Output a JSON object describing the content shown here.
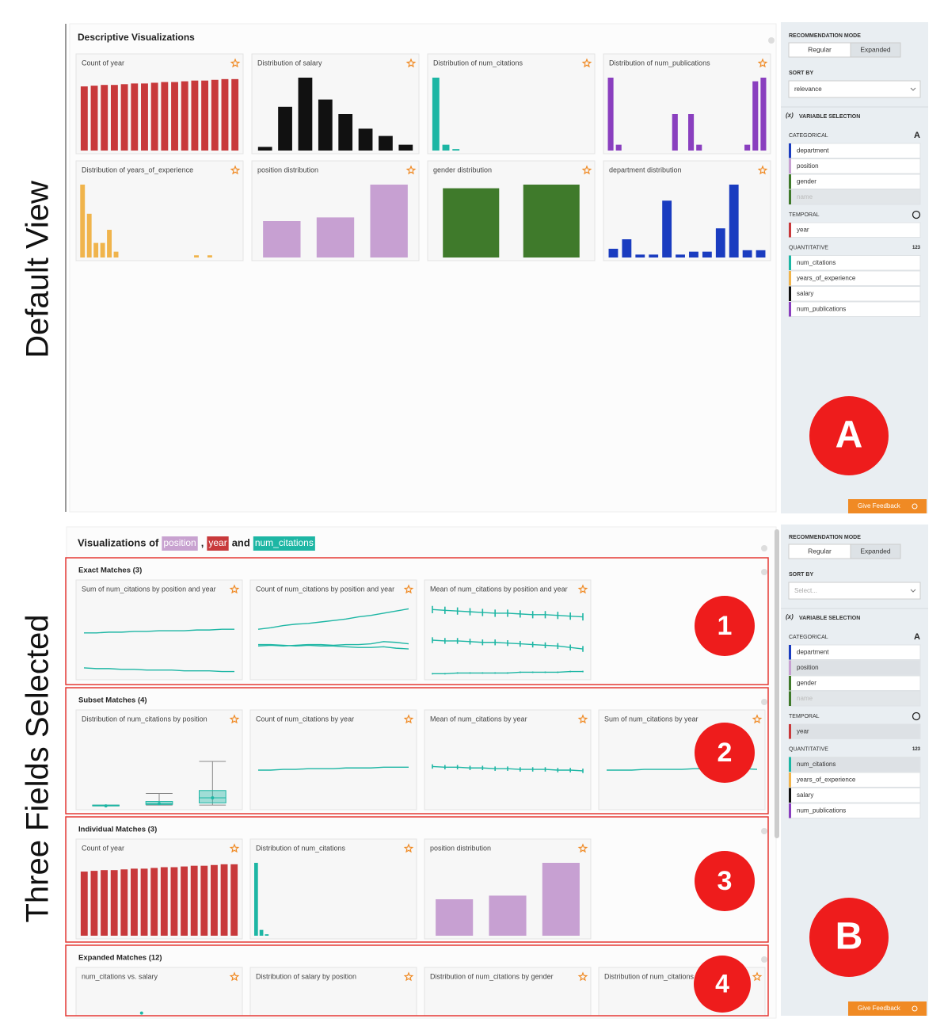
{
  "labels": {
    "default_view": "Default View",
    "three_fields": "Three Fields Selected"
  },
  "thumb_ylim": [
    0,
    100
  ],
  "panel_a": {
    "title": "Descriptive Visualizations",
    "cards": [
      {
        "title": "Count of year",
        "kind": "bar",
        "color": "#c8393b",
        "values": [
          88,
          89,
          90,
          90,
          91,
          92,
          92,
          93,
          94,
          94,
          95,
          96,
          96,
          97,
          98,
          98
        ]
      },
      {
        "title": "Distribution of salary",
        "kind": "bar",
        "color": "#111111",
        "values": [
          5,
          60,
          100,
          70,
          50,
          30,
          20,
          8
        ]
      },
      {
        "title": "Distribution of num_citations",
        "kind": "bar",
        "color": "#1db6a4",
        "values": [
          100,
          8,
          2,
          0,
          0,
          0,
          0,
          0,
          0,
          0,
          0,
          0,
          0,
          0,
          0,
          0
        ]
      },
      {
        "title": "Distribution of num_publications",
        "kind": "bar",
        "color": "#8a3fbf",
        "values": [
          100,
          8,
          0,
          0,
          0,
          0,
          0,
          0,
          50,
          0,
          50,
          8,
          0,
          0,
          0,
          0,
          0,
          8,
          95,
          100
        ]
      },
      {
        "title": "Distribution of years_of_experience",
        "kind": "bar",
        "color": "#f0b44c",
        "values": [
          100,
          60,
          20,
          20,
          38,
          8,
          0,
          0,
          0,
          0,
          0,
          0,
          0,
          0,
          0,
          0,
          0,
          3,
          0,
          3,
          0,
          0,
          0,
          0
        ]
      },
      {
        "title": "position distribution",
        "kind": "bar",
        "color": "#c7a0d2",
        "values": [
          50,
          55,
          100
        ]
      },
      {
        "title": "gender distribution",
        "kind": "bar",
        "color": "#3f7a2b",
        "values": [
          95,
          100
        ]
      },
      {
        "title": "department distribution",
        "kind": "bar",
        "color": "#1a3cc0",
        "values": [
          12,
          25,
          4,
          4,
          78,
          4,
          8,
          8,
          40,
          100,
          10,
          10
        ]
      }
    ]
  },
  "sidebar_a": {
    "mode_label": "RECOMMENDATION MODE",
    "modes": [
      "Regular",
      "Expanded"
    ],
    "active_mode": 1,
    "sort_label": "SORT BY",
    "sort_value": "relevance",
    "sort_placeholder": false,
    "var_icon": "(x)",
    "var_label": "VARIABLE SELECTION",
    "groups": [
      {
        "label": "CATEGORICAL",
        "icon": "A",
        "fields": [
          {
            "name": "department",
            "color": "#1a3cc0"
          },
          {
            "name": "position",
            "color": "#c7a0d2"
          },
          {
            "name": "gender",
            "color": "#3f7a2b"
          },
          {
            "name": "name",
            "color": "#3f7a2b",
            "disabled": true
          }
        ]
      },
      {
        "label": "TEMPORAL",
        "icon": "",
        "fields": [
          {
            "name": "year",
            "color": "#c8393b"
          }
        ]
      },
      {
        "label": "QUANTITATIVE",
        "icon": "123",
        "fields": [
          {
            "name": "num_citations",
            "color": "#1db6a4"
          },
          {
            "name": "years_of_experience",
            "color": "#f0b44c"
          },
          {
            "name": "salary",
            "color": "#111111"
          },
          {
            "name": "num_publications",
            "color": "#8a3fbf"
          }
        ]
      }
    ],
    "feedback": "Give Feedback"
  },
  "panel_b": {
    "title": [
      {
        "text": "Visualizations of"
      },
      {
        "text": "position",
        "highlight": "#c8a2d0"
      },
      {
        "text": ","
      },
      {
        "text": "year",
        "highlight": "#c8393b"
      },
      {
        "text": "and"
      },
      {
        "text": "num_citations",
        "highlight": "#1db6a4"
      }
    ],
    "sections": [
      {
        "title": "Exact Matches (3)",
        "cards": [
          {
            "title": "Sum of num_citations by position and year",
            "kind": "line",
            "color": "#1db6a4",
            "series": [
              {
                "values": [
                  60,
                  60,
                  61,
                  61,
                  62,
                  62,
                  63,
                  63,
                  63,
                  64,
                  64,
                  65,
                  65
                ]
              },
              {
                "values": [
                  12,
                  11,
                  11,
                  10,
                  10,
                  9,
                  9,
                  9,
                  8,
                  8,
                  8,
                  7,
                  7
                ]
              }
            ]
          },
          {
            "title": "Count of num_citations by position and year",
            "kind": "line",
            "color": "#1db6a4",
            "series": [
              {
                "values": [
                  65,
                  67,
                  70,
                  72,
                  73,
                  75,
                  77,
                  79,
                  82,
                  84,
                  87,
                  90,
                  93
                ]
              },
              {
                "values": [
                  42,
                  43,
                  42,
                  43,
                  44,
                  44,
                  43,
                  44,
                  44,
                  45,
                  48,
                  47,
                  45
                ]
              },
              {
                "values": [
                  44,
                  44,
                  43,
                  42,
                  43,
                  42,
                  42,
                  41,
                  40,
                  40,
                  41,
                  39,
                  38
                ]
              }
            ]
          },
          {
            "title": "Mean of num_citations by position and year",
            "kind": "line",
            "color": "#1db6a4",
            "series": [
              {
                "values": [
                  92,
                  91,
                  90,
                  89,
                  88,
                  87,
                  87,
                  86,
                  85,
                  85,
                  84,
                  83,
                  82
                ],
                "errors": [
                  5,
                  5,
                  5,
                  5,
                  5,
                  5,
                  5,
                  5,
                  5,
                  5,
                  5,
                  5,
                  5
                ]
              },
              {
                "values": [
                  50,
                  49,
                  49,
                  48,
                  47,
                  47,
                  46,
                  45,
                  44,
                  43,
                  42,
                  40,
                  38
                ],
                "errors": [
                  4,
                  4,
                  4,
                  4,
                  4,
                  4,
                  4,
                  4,
                  4,
                  4,
                  4,
                  4,
                  4
                ]
              },
              {
                "values": [
                  4,
                  4,
                  5,
                  5,
                  5,
                  5,
                  5,
                  6,
                  6,
                  6,
                  6,
                  7,
                  7
                ],
                "errors": [
                  1,
                  1,
                  1,
                  1,
                  1,
                  1,
                  1,
                  1,
                  1,
                  1,
                  1,
                  1,
                  1
                ]
              }
            ]
          }
        ]
      },
      {
        "title": "Subset Matches (4)",
        "cards": [
          {
            "title": "Distribution of num_citations by position",
            "kind": "box",
            "color": "#1db6a4",
            "boxes": [
              {
                "min": 1,
                "q1": 1,
                "median": 1,
                "q3": 2,
                "max": 2
              },
              {
                "min": 2,
                "q1": 3,
                "median": 4,
                "q3": 7,
                "max": 18
              },
              {
                "min": 2,
                "q1": 5,
                "median": 12,
                "q3": 22,
                "max": 62
              }
            ]
          },
          {
            "title": "Count of num_citations by year",
            "kind": "line",
            "color": "#1db6a4",
            "series": [
              {
                "values": [
                  50,
                  50,
                  51,
                  51,
                  52,
                  52,
                  52,
                  53,
                  53,
                  53,
                  54,
                  54,
                  54
                ]
              }
            ]
          },
          {
            "title": "Mean of num_citations by year",
            "kind": "line",
            "color": "#1db6a4",
            "series": [
              {
                "values": [
                  55,
                  54,
                  54,
                  53,
                  53,
                  52,
                  52,
                  51,
                  51,
                  51,
                  50,
                  50,
                  49
                ],
                "errors": [
                  3,
                  3,
                  3,
                  3,
                  3,
                  3,
                  3,
                  3,
                  3,
                  3,
                  3,
                  3,
                  3
                ]
              }
            ]
          },
          {
            "title": "Sum of num_citations by year",
            "kind": "line",
            "color": "#1db6a4",
            "series": [
              {
                "values": [
                  50,
                  50,
                  50,
                  51,
                  51,
                  51,
                  51,
                  52,
                  52,
                  52,
                  52,
                  52,
                  51
                ]
              }
            ]
          }
        ]
      },
      {
        "title": "Individual Matches (3)",
        "cards": [
          {
            "title": "Count of year",
            "kind": "bar",
            "color": "#c8393b",
            "values": [
              88,
              89,
              90,
              90,
              91,
              92,
              92,
              93,
              94,
              94,
              95,
              96,
              96,
              97,
              98,
              98
            ]
          },
          {
            "title": "Distribution of num_citations",
            "kind": "bar",
            "color": "#1db6a4",
            "values": [
              100,
              8,
              2,
              0,
              0,
              0,
              0,
              0,
              0,
              0,
              0,
              0,
              0,
              0,
              0,
              0,
              0,
              0,
              0,
              0,
              0,
              0,
              0,
              0,
              0,
              0,
              0,
              0,
              0,
              0
            ]
          },
          {
            "title": "position distribution",
            "kind": "bar",
            "color": "#c7a0d2",
            "values": [
              50,
              55,
              100
            ]
          }
        ]
      },
      {
        "title": "Expanded Matches (12)",
        "cards": [
          {
            "title": "num_citations vs. salary",
            "kind": "scatter",
            "color": "#1db6a4",
            "xlim": [
              0,
              100
            ],
            "x": [
              39
            ],
            "y": [
              70
            ]
          },
          {
            "title": "Distribution of salary by position",
            "kind": "none"
          },
          {
            "title": "Distribution of num_citations by gender",
            "kind": "none"
          },
          {
            "title": "Distribution of num_citations",
            "kind": "none"
          }
        ]
      }
    ]
  },
  "sidebar_b": {
    "mode_label": "RECOMMENDATION MODE",
    "modes": [
      "Regular",
      "Expanded"
    ],
    "active_mode": 1,
    "sort_label": "SORT BY",
    "sort_value": "Select...",
    "sort_placeholder": true,
    "var_icon": "(x)",
    "var_label": "VARIABLE SELECTION",
    "groups": [
      {
        "label": "CATEGORICAL",
        "icon": "A",
        "fields": [
          {
            "name": "department",
            "color": "#1a3cc0"
          },
          {
            "name": "position",
            "color": "#c7a0d2",
            "selected": true
          },
          {
            "name": "gender",
            "color": "#3f7a2b"
          },
          {
            "name": "name",
            "color": "#3f7a2b",
            "disabled": true
          }
        ]
      },
      {
        "label": "TEMPORAL",
        "icon": "",
        "fields": [
          {
            "name": "year",
            "color": "#c8393b",
            "selected": true
          }
        ]
      },
      {
        "label": "QUANTITATIVE",
        "icon": "123",
        "fields": [
          {
            "name": "num_citations",
            "color": "#1db6a4",
            "selected": true
          },
          {
            "name": "years_of_experience",
            "color": "#f0b44c"
          },
          {
            "name": "salary",
            "color": "#111111"
          },
          {
            "name": "num_publications",
            "color": "#8a3fbf"
          }
        ]
      }
    ],
    "feedback": "Give Feedback"
  },
  "badges": {
    "a": "A",
    "b": "B",
    "one": "1",
    "two": "2",
    "three": "3",
    "four": "4"
  }
}
